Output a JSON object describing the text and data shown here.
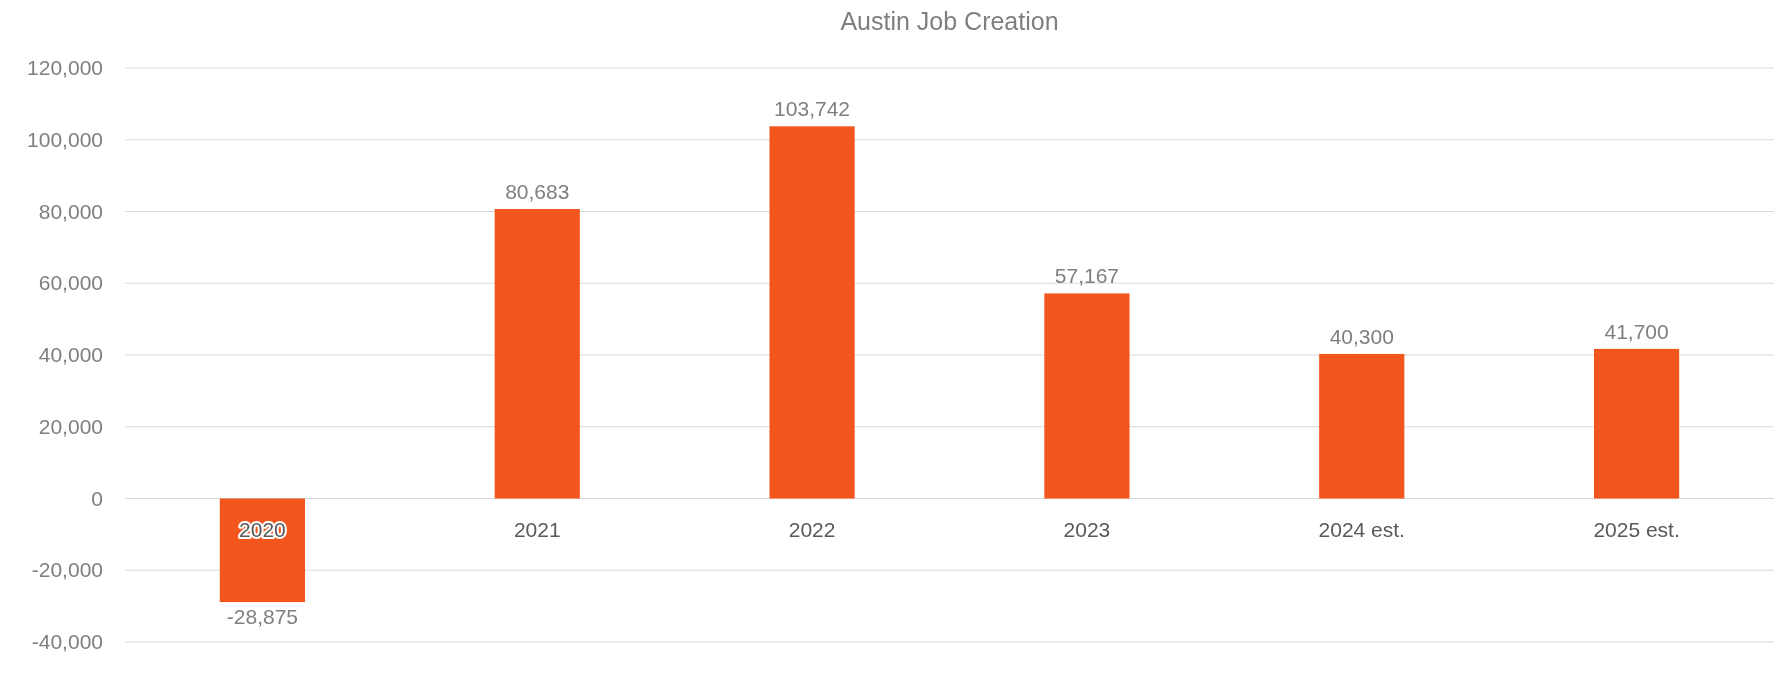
{
  "chart_data": {
    "type": "bar",
    "title": "Austin Job Creation",
    "categories": [
      "2020",
      "2021",
      "2022",
      "2023",
      "2024 est.",
      "2025 est."
    ],
    "values": [
      -28875,
      80683,
      103742,
      57167,
      40300,
      41700
    ],
    "color": "#f2561d",
    "ylim": [
      -40000,
      120000
    ],
    "yticks": [
      {
        "value": -40000,
        "label": "-40,000"
      },
      {
        "value": -20000,
        "label": "-20,000"
      },
      {
        "value": 0,
        "label": "0"
      },
      {
        "value": 20000,
        "label": "20,000"
      },
      {
        "value": 40000,
        "label": "40,000"
      },
      {
        "value": 60000,
        "label": "60,000"
      },
      {
        "value": 80000,
        "label": "80,000"
      },
      {
        "value": 100000,
        "label": "100,000"
      },
      {
        "value": 120000,
        "label": "120,000"
      }
    ],
    "value_labels": [
      "-28,875",
      "80,683",
      "103,742",
      "57,167",
      "40,300",
      "41,700"
    ],
    "grid": "y"
  }
}
